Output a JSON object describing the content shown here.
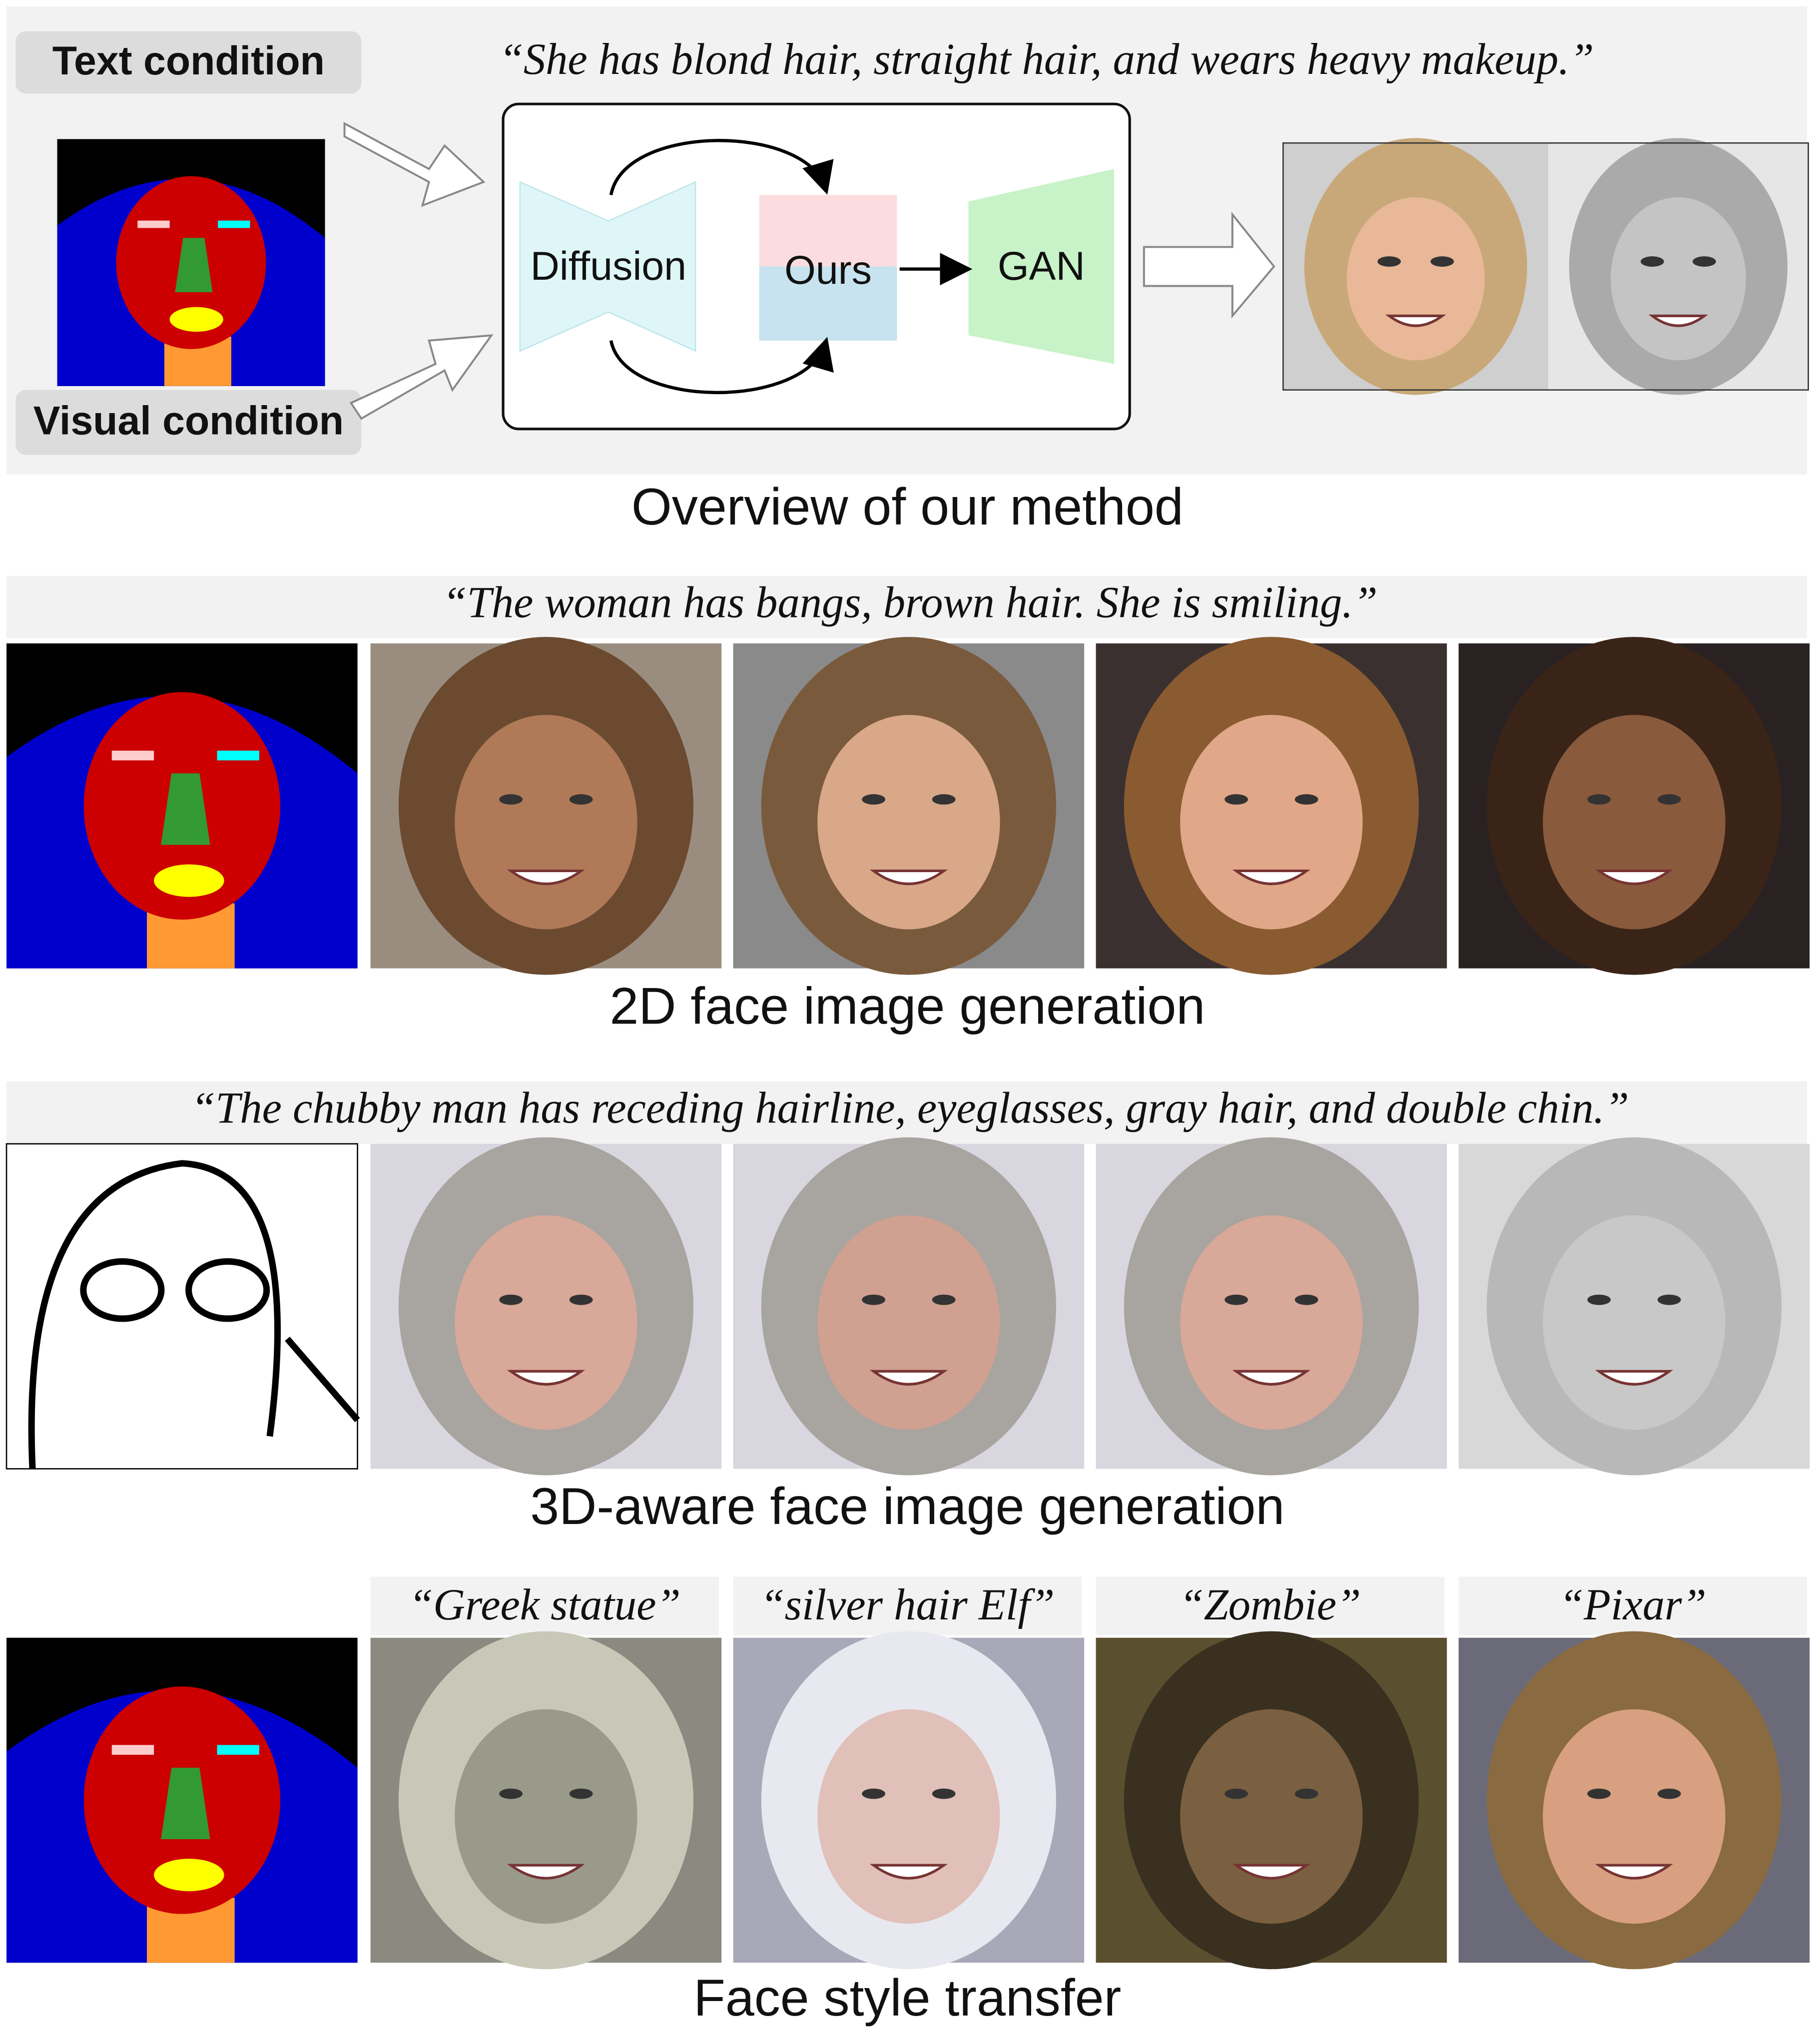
{
  "overview": {
    "text_condition_label": "Text condition",
    "text_prompt": "“She has blond hair, straight hair, and wears heavy makeup.”",
    "visual_condition_label": "Visual condition",
    "diffusion_label": "Diffusion",
    "ours_label": "Ours",
    "gan_label": "GAN",
    "caption": "Overview of our method"
  },
  "rows": [
    {
      "prompt": "“The woman has bangs, brown hair. She is smiling.”",
      "caption": "2D face image generation"
    },
    {
      "prompt": "“The chubby man has receding hairline, eyeglasses, gray hair, and double chin.”",
      "caption": "3D-aware face image generation"
    },
    {
      "styles": [
        "“Greek statue”",
        "“silver hair Elf”",
        "“Zombie”",
        "“Pixar”"
      ],
      "caption": "Face style transfer"
    }
  ]
}
